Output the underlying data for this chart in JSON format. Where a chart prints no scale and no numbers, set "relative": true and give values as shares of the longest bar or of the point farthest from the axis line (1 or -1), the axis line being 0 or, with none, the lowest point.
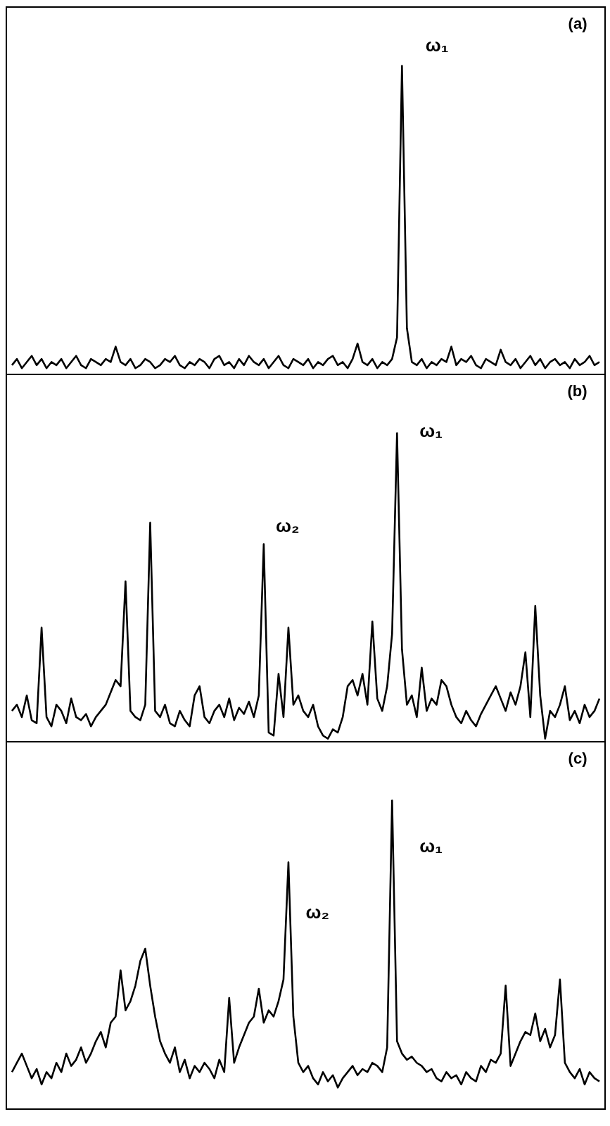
{
  "chart_data": [
    {
      "type": "line",
      "relative": true,
      "annotations": [
        "(a)",
        "ω₁"
      ],
      "categories": [
        null,
        null,
        null,
        null,
        null,
        null,
        null,
        null,
        null,
        null,
        null,
        null,
        null,
        null,
        null,
        null,
        null,
        null,
        null,
        null,
        null,
        null,
        null,
        null,
        null,
        null,
        null,
        null,
        null,
        null,
        null,
        null,
        null,
        null,
        null,
        null,
        null,
        null,
        null,
        null,
        null,
        null,
        null,
        null,
        null,
        null,
        null,
        null,
        null,
        null,
        null,
        null,
        null,
        null,
        null,
        null,
        null,
        null,
        null,
        null,
        null,
        null,
        null,
        null,
        null,
        null,
        null,
        null,
        null,
        null,
        null,
        null,
        null,
        null,
        null,
        null,
        null,
        null,
        null,
        null,
        null,
        null,
        null,
        null,
        null,
        null,
        null,
        null,
        null,
        null,
        null,
        null,
        null,
        null,
        null,
        null,
        null,
        null,
        null,
        null,
        null,
        null,
        null,
        null,
        null,
        null,
        null,
        null,
        null,
        null,
        null,
        null,
        null,
        null,
        null,
        null,
        null,
        null,
        null,
        null
      ],
      "series": [
        {
          "color": "#000000",
          "values": [
            0.03,
            0.05,
            0.02,
            0.04,
            0.06,
            0.03,
            0.05,
            0.02,
            0.04,
            0.03,
            0.05,
            0.02,
            0.04,
            0.06,
            0.03,
            0.02,
            0.05,
            0.04,
            0.03,
            0.05,
            0.04,
            0.09,
            0.04,
            0.03,
            0.05,
            0.02,
            0.03,
            0.05,
            0.04,
            0.02,
            0.03,
            0.05,
            0.04,
            0.06,
            0.03,
            0.02,
            0.04,
            0.03,
            0.05,
            0.04,
            0.02,
            0.05,
            0.06,
            0.03,
            0.04,
            0.02,
            0.05,
            0.03,
            0.06,
            0.04,
            0.03,
            0.05,
            0.02,
            0.04,
            0.06,
            0.03,
            0.02,
            0.05,
            0.04,
            0.03,
            0.05,
            0.02,
            0.04,
            0.03,
            0.05,
            0.06,
            0.03,
            0.04,
            0.02,
            0.05,
            0.1,
            0.04,
            0.03,
            0.05,
            0.02,
            0.04,
            0.03,
            0.05,
            0.12,
            1,
            0.15,
            0.04,
            0.03,
            0.05,
            0.02,
            0.04,
            0.03,
            0.05,
            0.04,
            0.09,
            0.03,
            0.05,
            0.04,
            0.06,
            0.03,
            0.02,
            0.05,
            0.04,
            0.03,
            0.08,
            0.04,
            0.03,
            0.05,
            0.02,
            0.04,
            0.06,
            0.03,
            0.05,
            0.02,
            0.04,
            0.05,
            0.03,
            0.04,
            0.02,
            0.05,
            0.03,
            0.04,
            0.06,
            0.03,
            0.04
          ]
        }
      ]
    },
    {
      "type": "line",
      "relative": true,
      "annotations": [
        "(b)",
        "ω₁",
        "ω₂"
      ],
      "categories": [
        null,
        null,
        null,
        null,
        null,
        null,
        null,
        null,
        null,
        null,
        null,
        null,
        null,
        null,
        null,
        null,
        null,
        null,
        null,
        null,
        null,
        null,
        null,
        null,
        null,
        null,
        null,
        null,
        null,
        null,
        null,
        null,
        null,
        null,
        null,
        null,
        null,
        null,
        null,
        null,
        null,
        null,
        null,
        null,
        null,
        null,
        null,
        null,
        null,
        null,
        null,
        null,
        null,
        null,
        null,
        null,
        null,
        null,
        null,
        null,
        null,
        null,
        null,
        null,
        null,
        null,
        null,
        null,
        null,
        null,
        null,
        null,
        null,
        null,
        null,
        null,
        null,
        null,
        null,
        null,
        null,
        null,
        null,
        null,
        null,
        null,
        null,
        null,
        null,
        null,
        null,
        null,
        null,
        null,
        null,
        null,
        null,
        null,
        null,
        null,
        null,
        null,
        null,
        null,
        null,
        null,
        null,
        null,
        null,
        null,
        null,
        null,
        null,
        null,
        null,
        null,
        null,
        null,
        null,
        null
      ],
      "series": [
        {
          "color": "#000000",
          "values": [
            0.1,
            0.12,
            0.08,
            0.15,
            0.07,
            0.06,
            0.37,
            0.08,
            0.05,
            0.12,
            0.1,
            0.06,
            0.14,
            0.08,
            0.07,
            0.09,
            0.05,
            0.08,
            0.1,
            0.12,
            0.16,
            0.2,
            0.18,
            0.52,
            0.1,
            0.08,
            0.07,
            0.12,
            0.71,
            0.1,
            0.08,
            0.12,
            0.06,
            0.05,
            0.1,
            0.07,
            0.05,
            0.15,
            0.18,
            0.08,
            0.06,
            0.1,
            0.12,
            0.08,
            0.14,
            0.07,
            0.11,
            0.09,
            0.13,
            0.08,
            0.15,
            0.64,
            0.03,
            0.02,
            0.22,
            0.08,
            0.37,
            0.12,
            0.15,
            0.1,
            0.08,
            0.12,
            0.05,
            0.02,
            0.01,
            0.04,
            0.03,
            0.08,
            0.18,
            0.2,
            0.15,
            0.22,
            0.12,
            0.39,
            0.14,
            0.1,
            0.18,
            0.35,
            1,
            0.3,
            0.12,
            0.15,
            0.08,
            0.24,
            0.1,
            0.14,
            0.12,
            0.2,
            0.18,
            0.12,
            0.08,
            0.06,
            0.1,
            0.07,
            0.05,
            0.09,
            0.12,
            0.15,
            0.18,
            0.14,
            0.1,
            0.16,
            0.12,
            0.18,
            0.29,
            0.08,
            0.44,
            0.15,
            0.01,
            0.1,
            0.08,
            0.12,
            0.18,
            0.07,
            0.1,
            0.06,
            0.12,
            0.08,
            0.1,
            0.14
          ]
        }
      ]
    },
    {
      "type": "line",
      "relative": true,
      "annotations": [
        "(c)",
        "ω₁",
        "ω₂"
      ],
      "categories": [
        null,
        null,
        null,
        null,
        null,
        null,
        null,
        null,
        null,
        null,
        null,
        null,
        null,
        null,
        null,
        null,
        null,
        null,
        null,
        null,
        null,
        null,
        null,
        null,
        null,
        null,
        null,
        null,
        null,
        null,
        null,
        null,
        null,
        null,
        null,
        null,
        null,
        null,
        null,
        null,
        null,
        null,
        null,
        null,
        null,
        null,
        null,
        null,
        null,
        null,
        null,
        null,
        null,
        null,
        null,
        null,
        null,
        null,
        null,
        null,
        null,
        null,
        null,
        null,
        null,
        null,
        null,
        null,
        null,
        null,
        null,
        null,
        null,
        null,
        null,
        null,
        null,
        null,
        null,
        null,
        null,
        null,
        null,
        null,
        null,
        null,
        null,
        null,
        null,
        null,
        null,
        null,
        null,
        null,
        null,
        null,
        null,
        null,
        null,
        null,
        null,
        null,
        null,
        null,
        null,
        null,
        null,
        null,
        null,
        null,
        null,
        null,
        null,
        null,
        null,
        null,
        null,
        null,
        null,
        null
      ],
      "series": [
        {
          "color": "#000000",
          "values": [
            0.12,
            0.15,
            0.18,
            0.14,
            0.1,
            0.13,
            0.08,
            0.12,
            0.1,
            0.15,
            0.12,
            0.18,
            0.14,
            0.16,
            0.2,
            0.15,
            0.18,
            0.22,
            0.25,
            0.2,
            0.28,
            0.3,
            0.45,
            0.32,
            0.35,
            0.4,
            0.48,
            0.52,
            0.4,
            0.3,
            0.22,
            0.18,
            0.15,
            0.2,
            0.12,
            0.16,
            0.1,
            0.14,
            0.12,
            0.15,
            0.13,
            0.1,
            0.16,
            0.12,
            0.36,
            0.15,
            0.2,
            0.24,
            0.28,
            0.3,
            0.39,
            0.28,
            0.32,
            0.3,
            0.35,
            0.42,
            0.8,
            0.3,
            0.15,
            0.12,
            0.14,
            0.1,
            0.08,
            0.12,
            0.09,
            0.11,
            0.07,
            0.1,
            0.12,
            0.14,
            0.11,
            0.13,
            0.12,
            0.15,
            0.14,
            0.12,
            0.2,
            1,
            0.22,
            0.18,
            0.16,
            0.17,
            0.15,
            0.14,
            0.12,
            0.13,
            0.1,
            0.09,
            0.12,
            0.1,
            0.11,
            0.08,
            0.12,
            0.1,
            0.09,
            0.14,
            0.12,
            0.16,
            0.15,
            0.18,
            0.4,
            0.14,
            0.18,
            0.22,
            0.25,
            0.24,
            0.31,
            0.22,
            0.26,
            0.2,
            0.24,
            0.42,
            0.15,
            0.12,
            0.1,
            0.13,
            0.08,
            0.12,
            0.1,
            0.09
          ]
        }
      ]
    }
  ]
}
